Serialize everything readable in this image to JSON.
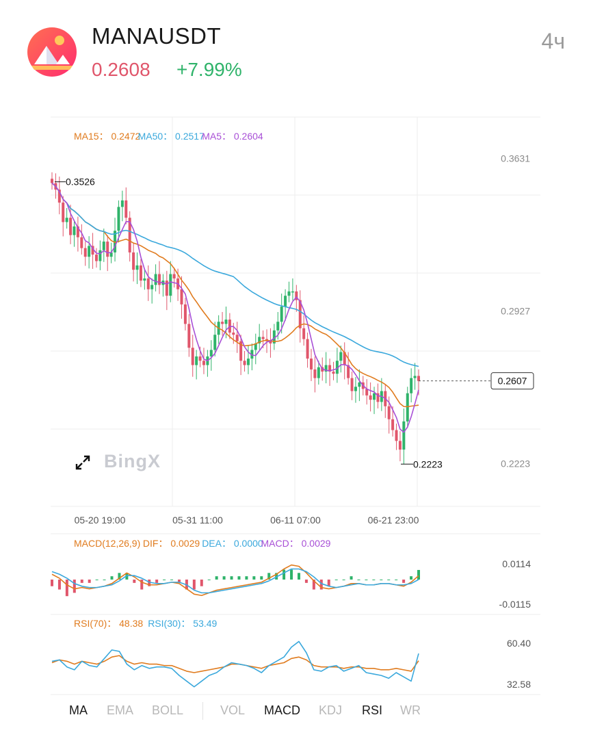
{
  "header": {
    "symbol": "MANAUSDT",
    "price": "0.2608",
    "change": "+7.99%",
    "timeframe": "4ч",
    "price_color": "#e0566b",
    "change_color": "#2fb36a"
  },
  "watermark": {
    "text": "BingX",
    "expand_icon": "expand-arrows-icon"
  },
  "main_legend": [
    {
      "label": "MA15",
      "value": "0.2472",
      "color": "#e07b1e"
    },
    {
      "label": "MA50",
      "value": "0.2517",
      "color": "#3aa8dc"
    },
    {
      "label": "MA5",
      "value": "0.2604",
      "color": "#a84fd6"
    }
  ],
  "macd_legend": [
    {
      "label": "MACD(12,26,9)",
      "value": "",
      "color": "#e07b1e"
    },
    {
      "label": "DIF",
      "value": "0.0029",
      "color": "#e07b1e"
    },
    {
      "label": "DEA",
      "value": "0.0000",
      "color": "#3aa8dc"
    },
    {
      "label": "MACD",
      "value": "0.0029",
      "color": "#a84fd6"
    }
  ],
  "rsi_legend": [
    {
      "label": "RSI(70)",
      "value": "48.38",
      "color": "#e07b1e"
    },
    {
      "label": "RSI(30)",
      "value": "53.49",
      "color": "#3aa8dc"
    }
  ],
  "tabs": [
    {
      "label": "MA",
      "active": true
    },
    {
      "label": "EMA",
      "active": false
    },
    {
      "label": "BOLL",
      "active": false
    },
    {
      "label": "VOL",
      "active": false
    },
    {
      "label": "MACD",
      "active": true
    },
    {
      "label": "KDJ",
      "active": false
    },
    {
      "label": "RSI",
      "active": true
    },
    {
      "label": "WR",
      "active": false
    }
  ],
  "chart_data": [
    {
      "type": "candlestick",
      "title": "MANAUSDT",
      "price_axis_labels": [
        "0.3631",
        "0.2927",
        "0.2223"
      ],
      "x_tick_labels": [
        "05-20 19:00",
        "05-31 11:00",
        "06-11 07:00",
        "06-21 23:00"
      ],
      "ylim": [
        0.2028,
        0.3825
      ],
      "annotations": {
        "high": "0.3526",
        "low": "0.2223",
        "last_price_tag": "0.2607"
      },
      "close_path": [
        0.352,
        0.349,
        0.343,
        0.334,
        0.336,
        0.328,
        0.332,
        0.327,
        0.322,
        0.318,
        0.323,
        0.319,
        0.316,
        0.321,
        0.325,
        0.318,
        0.32,
        0.33,
        0.341,
        0.344,
        0.336,
        0.32,
        0.312,
        0.314,
        0.307,
        0.308,
        0.303,
        0.305,
        0.31,
        0.305,
        0.307,
        0.3,
        0.31,
        0.308,
        0.303,
        0.296,
        0.287,
        0.276,
        0.268,
        0.272,
        0.27,
        0.268,
        0.272,
        0.275,
        0.282,
        0.288,
        0.287,
        0.289,
        0.283,
        0.282,
        0.279,
        0.27,
        0.268,
        0.271,
        0.275,
        0.278,
        0.281,
        0.28,
        0.279,
        0.278,
        0.284,
        0.288,
        0.295,
        0.3,
        0.302,
        0.302,
        0.298,
        0.285,
        0.28,
        0.271,
        0.266,
        0.262,
        0.267,
        0.265,
        0.268,
        0.265,
        0.264,
        0.27,
        0.274,
        0.268,
        0.262,
        0.256,
        0.258,
        0.26,
        0.257,
        0.254,
        0.252,
        0.255,
        0.251,
        0.256,
        0.249,
        0.243,
        0.238,
        0.233,
        0.229,
        0.242,
        0.255,
        0.262,
        0.263,
        0.2607
      ],
      "volume_note": "",
      "moving_averages": [
        "MA15",
        "MA50",
        "MA5"
      ]
    },
    {
      "type": "line",
      "title": "MACD(12,26,9)",
      "axis_labels": [
        "0.0114",
        "-0.0115"
      ],
      "ylim": [
        -0.016,
        0.016
      ],
      "series": [
        {
          "name": "DIF",
          "values": [
            0.004,
            0.001,
            -0.004,
            -0.007,
            -0.006,
            -0.007,
            -0.006,
            -0.005,
            -0.003,
            0.001,
            0.005,
            0.002,
            -0.002,
            -0.004,
            -0.004,
            -0.003,
            -0.002,
            -0.003,
            -0.007,
            -0.011,
            -0.012,
            -0.01,
            -0.008,
            -0.007,
            -0.006,
            -0.005,
            -0.004,
            -0.003,
            -0.002,
            0.001,
            0.004,
            0.008,
            0.011,
            0.01,
            0.005,
            -0.001,
            -0.006,
            -0.007,
            -0.006,
            -0.005,
            -0.003,
            -0.003,
            -0.004,
            -0.004,
            -0.003,
            -0.003,
            -0.004,
            -0.005,
            -0.002,
            0.0029
          ]
        },
        {
          "name": "DEA",
          "values": [
            0.006,
            0.004,
            0.001,
            -0.003,
            -0.005,
            -0.006,
            -0.006,
            -0.005,
            -0.004,
            -0.001,
            0.003,
            0.003,
            0.001,
            -0.002,
            -0.003,
            -0.003,
            -0.002,
            -0.002,
            -0.004,
            -0.008,
            -0.01,
            -0.01,
            -0.009,
            -0.008,
            -0.007,
            -0.006,
            -0.005,
            -0.004,
            -0.003,
            -0.001,
            0.002,
            0.005,
            0.008,
            0.008,
            0.006,
            0.002,
            -0.003,
            -0.005,
            -0.006,
            -0.005,
            -0.004,
            -0.003,
            -0.004,
            -0.004,
            -0.003,
            -0.003,
            -0.004,
            -0.004,
            -0.003,
            0.0
          ]
        }
      ]
    },
    {
      "type": "line",
      "title": "RSI",
      "axis_labels": [
        "60.40",
        "32.58"
      ],
      "ylim": [
        26,
        68
      ],
      "series": [
        {
          "name": "RSI(70)",
          "values": [
            47,
            49,
            48,
            46,
            48,
            47,
            46,
            48,
            51,
            52,
            48,
            46,
            47,
            46,
            46,
            45,
            45,
            43,
            41,
            40,
            41,
            42,
            43,
            44,
            46,
            46,
            45,
            44,
            43,
            45,
            46,
            47,
            50,
            51,
            49,
            45,
            44,
            44,
            44,
            43,
            44,
            44,
            43,
            43,
            42,
            42,
            43,
            42,
            41,
            48.38
          ]
        },
        {
          "name": "RSI(30)",
          "values": [
            48,
            49,
            44,
            42,
            48,
            45,
            44,
            50,
            56,
            55,
            46,
            42,
            45,
            43,
            44,
            44,
            43,
            38,
            34,
            30,
            34,
            38,
            40,
            44,
            47,
            46,
            45,
            43,
            40,
            45,
            48,
            51,
            58,
            62,
            54,
            42,
            41,
            44,
            45,
            41,
            43,
            45,
            40,
            39,
            38,
            36,
            40,
            37,
            34,
            53.49
          ]
        }
      ]
    }
  ]
}
